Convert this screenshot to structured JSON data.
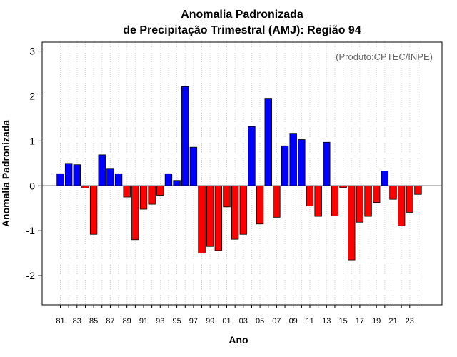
{
  "chart_data": {
    "type": "bar",
    "title_line1": "Anomalia Padronizada",
    "title_line2": "de Precipitação Trimestral (AMJ): Região 94",
    "xlabel": "Ano",
    "ylabel": "Anomalia Padronizada",
    "credit": "(Produto:CPTEC/INPE)",
    "ylim": [
      -2.65,
      3.2
    ],
    "yticks": [
      -2,
      -1,
      0,
      1,
      2,
      3
    ],
    "ytick_labels": [
      "-2",
      "-1",
      "0",
      "1",
      "2",
      "3"
    ],
    "xtick_labels": [
      "81",
      "83",
      "85",
      "87",
      "89",
      "91",
      "93",
      "95",
      "97",
      "99",
      "01",
      "03",
      "05",
      "07",
      "09",
      "11",
      "13",
      "15",
      "17",
      "19",
      "21",
      "23"
    ],
    "years": [
      "1981",
      "1982",
      "1983",
      "1984",
      "1985",
      "1986",
      "1987",
      "1988",
      "1989",
      "1990",
      "1991",
      "1992",
      "1993",
      "1994",
      "1995",
      "1996",
      "1997",
      "1998",
      "1999",
      "2000",
      "2001",
      "2002",
      "2003",
      "2004",
      "2005",
      "2006",
      "2007",
      "2008",
      "2009",
      "2010",
      "2011",
      "2012",
      "2013",
      "2014",
      "2015",
      "2016",
      "2017",
      "2018",
      "2019",
      "2020",
      "2021",
      "2022",
      "2023",
      "2024"
    ],
    "values": [
      0.27,
      0.5,
      0.47,
      -0.05,
      -1.08,
      0.69,
      0.39,
      0.27,
      -0.25,
      -1.2,
      -0.52,
      -0.41,
      -0.21,
      0.27,
      0.12,
      2.21,
      0.86,
      -1.5,
      -1.35,
      -1.44,
      -0.47,
      -1.19,
      -1.08,
      1.32,
      -0.85,
      1.95,
      -0.7,
      0.89,
      1.17,
      1.03,
      -0.45,
      -0.68,
      0.97,
      -0.67,
      -0.04,
      -1.65,
      -0.81,
      -0.68,
      -0.37,
      0.33,
      -0.3,
      -0.89,
      -0.59,
      -0.19
    ],
    "positive_color": "#0000ff",
    "negative_color": "#ff0000",
    "grid": true
  }
}
